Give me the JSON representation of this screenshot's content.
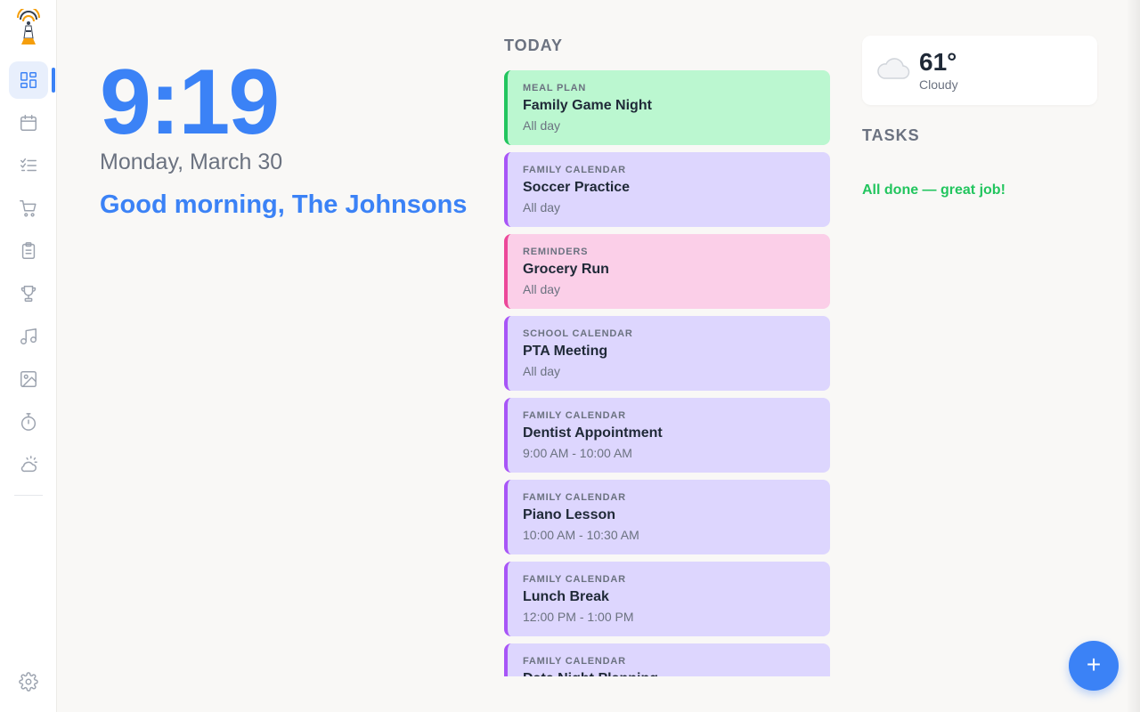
{
  "sidebar": {
    "items": [
      {
        "name": "dashboard",
        "icon": "dashboard-icon",
        "active": true
      },
      {
        "name": "calendar",
        "icon": "calendar-icon"
      },
      {
        "name": "tasks",
        "icon": "checklist-icon"
      },
      {
        "name": "shopping",
        "icon": "cart-icon"
      },
      {
        "name": "lists",
        "icon": "clipboard-icon"
      },
      {
        "name": "rewards",
        "icon": "trophy-icon"
      },
      {
        "name": "music",
        "icon": "music-note-icon"
      },
      {
        "name": "photos",
        "icon": "image-icon"
      },
      {
        "name": "timer",
        "icon": "stopwatch-icon"
      },
      {
        "name": "weather",
        "icon": "sun-cloud-icon"
      }
    ],
    "settings_icon": "gear-icon"
  },
  "clock": {
    "time": "9:19",
    "date": "Monday, March 30",
    "greeting": "Good morning, The Johnsons"
  },
  "today": {
    "title": "TODAY",
    "events": [
      {
        "category": "MEAL PLAN",
        "title": "Family Game Night",
        "time": "All day",
        "bg": "#bbf7d0",
        "border": "#22c55e"
      },
      {
        "category": "FAMILY CALENDAR",
        "title": "Soccer Practice",
        "time": "All day",
        "bg": "#ddd6fe",
        "border": "#a855f7"
      },
      {
        "category": "REMINDERS",
        "title": "Grocery Run",
        "time": "All day",
        "bg": "#fbcfe8",
        "border": "#ec4899"
      },
      {
        "category": "SCHOOL CALENDAR",
        "title": "PTA Meeting",
        "time": "All day",
        "bg": "#ddd6fe",
        "border": "#a855f7"
      },
      {
        "category": "FAMILY CALENDAR",
        "title": "Dentist Appointment",
        "time": "9:00 AM - 10:00 AM",
        "bg": "#ddd6fe",
        "border": "#a855f7"
      },
      {
        "category": "FAMILY CALENDAR",
        "title": "Piano Lesson",
        "time": "10:00 AM - 10:30 AM",
        "bg": "#ddd6fe",
        "border": "#a855f7"
      },
      {
        "category": "FAMILY CALENDAR",
        "title": "Lunch Break",
        "time": "12:00 PM - 1:00 PM",
        "bg": "#ddd6fe",
        "border": "#a855f7"
      },
      {
        "category": "FAMILY CALENDAR",
        "title": "Date Night Planning",
        "time": "",
        "bg": "#ddd6fe",
        "border": "#a855f7"
      }
    ]
  },
  "weather": {
    "temp": "61°",
    "condition": "Cloudy",
    "icon": "cloud-icon"
  },
  "tasks": {
    "title": "TASKS",
    "empty_message": "All done — great job!"
  },
  "fab": {
    "label": "+",
    "icon": "plus-icon"
  },
  "colors": {
    "accent": "#3b82f6",
    "success": "#22c55e"
  }
}
